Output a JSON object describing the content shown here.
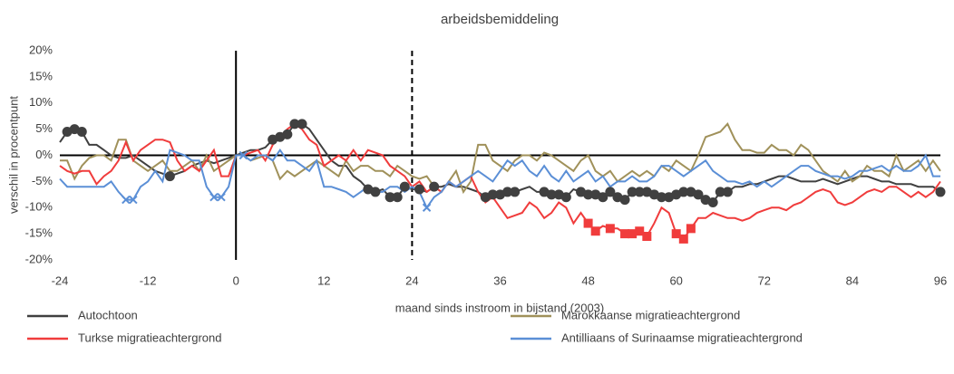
{
  "chart_data": {
    "type": "line",
    "title": "arbeidsbemiddeling",
    "x_label": "maand sinds instroom in bijstand (2003)",
    "y_label": "verschil in procentpunt",
    "xlim": [
      -24,
      96
    ],
    "xticks": [
      -24,
      -12,
      0,
      12,
      24,
      36,
      48,
      60,
      72,
      84,
      96
    ],
    "ylim": [
      -20,
      20
    ],
    "yticks": [
      {
        "value": -20,
        "label": "-20%"
      },
      {
        "value": -15,
        "label": "-15%"
      },
      {
        "value": -10,
        "label": "-10%"
      },
      {
        "value": -5,
        "label": "-5%"
      },
      {
        "value": 0,
        "label": "0%"
      },
      {
        "value": 5,
        "label": "5%"
      },
      {
        "value": 10,
        "label": "10%"
      },
      {
        "value": 15,
        "label": "15%"
      },
      {
        "value": 20,
        "label": "20%"
      }
    ],
    "reference_lines": [
      {
        "x": 0,
        "style": "solid"
      },
      {
        "x": 24,
        "style": "dashed"
      }
    ],
    "x": [
      -24,
      -23,
      -22,
      -21,
      -20,
      -19,
      -18,
      -17,
      -16,
      -15,
      -14,
      -13,
      -12,
      -11,
      -10,
      -9,
      -8,
      -7,
      -6,
      -5,
      -4,
      -3,
      -2,
      -1,
      0,
      1,
      2,
      3,
      4,
      5,
      6,
      7,
      8,
      9,
      10,
      11,
      12,
      13,
      14,
      15,
      16,
      17,
      18,
      19,
      20,
      21,
      22,
      23,
      24,
      25,
      26,
      27,
      28,
      29,
      30,
      31,
      32,
      33,
      34,
      35,
      36,
      37,
      38,
      39,
      40,
      41,
      42,
      43,
      44,
      45,
      46,
      47,
      48,
      49,
      50,
      51,
      52,
      53,
      54,
      55,
      56,
      57,
      58,
      59,
      60,
      61,
      62,
      63,
      64,
      65,
      66,
      67,
      68,
      69,
      70,
      71,
      72,
      73,
      74,
      75,
      76,
      77,
      78,
      79,
      80,
      81,
      82,
      83,
      84,
      85,
      86,
      87,
      88,
      89,
      90,
      91,
      92,
      93,
      94,
      95,
      96
    ],
    "series": [
      {
        "name": "Autochtoon",
        "color": "#404040",
        "marker": "circle",
        "values": [
          2.5,
          4.5,
          5,
          4.5,
          2,
          2,
          1,
          0,
          -0.5,
          -0.5,
          0,
          -1,
          -2,
          -3,
          -3.5,
          -4,
          -3.5,
          -3,
          -2,
          -1.5,
          -1,
          -1.5,
          -1,
          -0.5,
          0,
          0.5,
          1,
          1,
          1.5,
          3,
          3.5,
          4,
          6,
          6,
          5,
          3,
          1,
          -1,
          -2,
          -2,
          -4,
          -5,
          -6.5,
          -7,
          -6.5,
          -8,
          -8,
          -6,
          -6.5,
          -6.5,
          -7,
          -6,
          -6,
          -5.5,
          -6,
          -6,
          -6.5,
          -7,
          -8,
          -7.5,
          -7.5,
          -7,
          -7,
          -6.5,
          -6,
          -7,
          -7,
          -7.5,
          -7.5,
          -8,
          -6.5,
          -7,
          -7.5,
          -7.5,
          -8,
          -7,
          -8,
          -8.5,
          -7,
          -7,
          -7,
          -7.5,
          -8,
          -8,
          -7.5,
          -7,
          -7,
          -7.5,
          -8.5,
          -9,
          -7,
          -7,
          -6,
          -6,
          -5.5,
          -5.5,
          -5,
          -4.5,
          -4,
          -4,
          -4.5,
          -5,
          -5,
          -5,
          -4.5,
          -5,
          -5.5,
          -5,
          -4.5,
          -4,
          -4,
          -4.5,
          -5,
          -5,
          -5.5,
          -5.5,
          -5.5,
          -6,
          -6,
          -6,
          -7
        ],
        "marker_x": [
          -23,
          -22,
          -21,
          -9,
          5,
          6,
          7,
          8,
          9,
          18,
          19,
          21,
          22,
          23,
          25,
          27,
          34,
          35,
          36,
          37,
          38,
          42,
          43,
          44,
          45,
          47,
          48,
          49,
          50,
          51,
          52,
          53,
          54,
          55,
          56,
          57,
          58,
          59,
          60,
          61,
          62,
          63,
          64,
          65,
          66,
          67,
          96
        ]
      },
      {
        "name": "Marokkaanse migratieachtergrond",
        "color": "#a0915a",
        "marker": "none",
        "values": [
          -1,
          -1,
          -4.5,
          -2,
          -0.5,
          0,
          0,
          -1,
          3,
          3,
          -1,
          -2,
          -3,
          -2,
          -1,
          -3,
          -3,
          -2,
          -1,
          -3,
          0,
          -3,
          -2,
          -1,
          0,
          0,
          -1,
          -0.5,
          0,
          -1,
          -4.5,
          -3,
          -4,
          -3,
          -2,
          -1,
          -2,
          -3,
          -4,
          -1,
          -3,
          -2,
          -2,
          -3,
          -3,
          -4,
          -2,
          -3,
          -4,
          -4.5,
          -4,
          -6,
          -7,
          -5,
          -3,
          -7,
          -5,
          2,
          2,
          -1,
          -2,
          -3,
          -1,
          0,
          0,
          -1,
          0.5,
          0,
          -1,
          -2,
          -3,
          -1,
          0,
          -3,
          -4,
          -3,
          -5,
          -4,
          -3,
          -4,
          -3,
          -4,
          -2,
          -3,
          -1,
          -2,
          -3,
          0,
          3.5,
          4,
          4.5,
          6,
          3,
          1,
          1,
          0.5,
          0.5,
          2,
          1,
          1,
          0,
          2,
          1,
          -1,
          -3,
          -4,
          -5,
          -3,
          -5,
          -4,
          -2,
          -3,
          -3,
          -4,
          0,
          -3,
          -2,
          -1,
          -3,
          -1,
          -3
        ],
        "marker_x": []
      },
      {
        "name": "Turkse migratieachtergrond",
        "color": "#f03c3c",
        "marker": "square",
        "values": [
          -2,
          -3,
          -3.5,
          -3,
          -3,
          -5.5,
          -4,
          -3,
          -1,
          2.5,
          -1,
          1,
          2,
          3,
          3,
          2.5,
          -1,
          -3,
          -2,
          -3,
          -1,
          1,
          -4,
          -4,
          0,
          0,
          0.5,
          1,
          -1,
          2,
          3.5,
          5,
          6,
          5,
          3,
          2,
          -2,
          -1,
          0,
          -1,
          1,
          -1,
          1,
          0.5,
          0,
          -2,
          -3,
          -4,
          -6,
          -5,
          -7,
          -6,
          -7,
          -5,
          -6,
          -5,
          -4,
          -7,
          -9,
          -8,
          -10,
          -12,
          -11.5,
          -11,
          -9,
          -10,
          -12,
          -11,
          -9,
          -10,
          -13,
          -11,
          -13,
          -14.5,
          -13.5,
          -14,
          -14,
          -15,
          -15,
          -14.5,
          -15.5,
          -13,
          -10,
          -11,
          -15,
          -16,
          -14,
          -12,
          -12,
          -11,
          -11.5,
          -12,
          -12,
          -12.5,
          -12,
          -11,
          -10.5,
          -10,
          -10,
          -10.5,
          -9.5,
          -9,
          -8,
          -7,
          -6.5,
          -7,
          -9,
          -9.5,
          -9,
          -8,
          -7,
          -6.5,
          -7,
          -6,
          -6,
          -7,
          -8,
          -7,
          -8,
          -7,
          -5
        ],
        "marker_x": [
          48,
          49,
          51,
          53,
          54,
          55,
          56,
          60,
          61,
          62
        ]
      },
      {
        "name": "Antilliaans of Surinaamse migratieachtergrond",
        "color": "#5b8fd6",
        "marker": "cross",
        "values": [
          -4.5,
          -6,
          -6,
          -6,
          -6,
          -6,
          -6,
          -5,
          -7,
          -8.5,
          -8.5,
          -6,
          -5,
          -3,
          -5,
          1,
          0.5,
          0,
          -1,
          -1,
          -6,
          -8,
          -8,
          -6,
          0,
          0,
          -1,
          0,
          0,
          -1,
          1,
          -1,
          -1,
          -2,
          -3,
          -1,
          -6,
          -6,
          -6.5,
          -7,
          -8,
          -7,
          -6,
          -7,
          -7,
          -6,
          -6,
          -7,
          -6,
          -7,
          -10,
          -8,
          -7,
          -5,
          -6,
          -5,
          -4,
          -3,
          -4,
          -5,
          -3,
          -1,
          -2,
          -1,
          -3,
          -4,
          -2,
          -4,
          -5,
          -3,
          -5,
          -4,
          -3,
          -5,
          -4,
          -6,
          -5,
          -5,
          -4,
          -5,
          -5,
          -4,
          -2,
          -2,
          -3,
          -4,
          -3,
          -2,
          -1,
          -3,
          -4,
          -5,
          -5,
          -5.5,
          -5,
          -6,
          -5,
          -6,
          -5,
          -4,
          -3,
          -2,
          -2,
          -3,
          -3.5,
          -4,
          -4,
          -4.5,
          -4,
          -3,
          -3,
          -2.5,
          -2,
          -3,
          -2,
          -3,
          -3,
          -2,
          0,
          -4,
          -4
        ],
        "marker_x": [
          -15,
          -14,
          -3,
          -2,
          1,
          26
        ]
      }
    ]
  }
}
